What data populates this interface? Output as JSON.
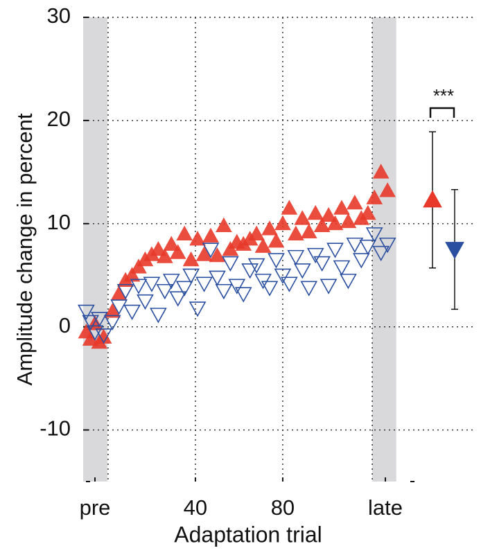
{
  "chart_data": {
    "type": "scatter",
    "y_label": "Amplitude change in percent",
    "x_label": "Adaptation trial",
    "annotation": "***",
    "ylim": [
      -15,
      30
    ],
    "yticks": [
      -10,
      0,
      10,
      20,
      30
    ],
    "xlim": [
      -11.4,
      139.7
    ],
    "xticks": [
      {
        "value": -6,
        "label": "pre"
      },
      40,
      80,
      {
        "value": 127,
        "label": "late"
      }
    ],
    "xgrid": [
      0,
      40,
      80,
      121
    ],
    "shaded_regions": [
      [
        -11.4,
        -0.3
      ],
      [
        121,
        132
      ]
    ],
    "grid": true,
    "series": [
      {
        "color": "#e8392a",
        "marker": "up-filled",
        "x": [
          -10,
          -8,
          -6,
          -4,
          -2,
          2,
          5,
          8,
          11,
          14,
          17,
          20,
          23,
          26,
          29,
          32,
          35,
          38,
          41,
          44,
          47,
          50,
          53,
          56,
          59,
          62,
          65,
          68,
          71,
          74,
          77,
          80,
          83,
          86,
          89,
          92,
          95,
          98,
          101,
          104,
          107,
          110,
          113,
          116,
          119,
          122,
          125,
          128
        ],
        "values": [
          -0.5,
          -1.2,
          0.3,
          -1.5,
          -1.0,
          1.5,
          3.2,
          4.5,
          5.0,
          5.8,
          6.5,
          7.0,
          7.5,
          6.8,
          8.0,
          7.2,
          9.0,
          6.5,
          8.5,
          7.0,
          8.8,
          6.9,
          9.8,
          7.5,
          8.2,
          8.0,
          8.5,
          9.0,
          7.8,
          9.5,
          8.3,
          10.0,
          11.5,
          9.0,
          10.5,
          9.2,
          11.0,
          9.8,
          10.8,
          10.0,
          11.5,
          10.2,
          12.0,
          10.5,
          11.0,
          12.5,
          15.0,
          13.2
        ]
      },
      {
        "color": "#2a4fa0",
        "marker": "down-open",
        "x": [
          -10,
          -8,
          -6,
          -4,
          -2,
          2,
          5,
          8,
          11,
          14,
          17,
          20,
          23,
          26,
          29,
          32,
          35,
          38,
          41,
          44,
          47,
          50,
          53,
          56,
          59,
          62,
          65,
          68,
          71,
          74,
          77,
          80,
          83,
          86,
          89,
          92,
          95,
          98,
          101,
          104,
          107,
          110,
          113,
          116,
          119,
          122,
          125,
          128
        ],
        "values": [
          1.5,
          0.5,
          -0.5,
          0.8,
          -0.8,
          0.5,
          2.0,
          3.5,
          1.5,
          4.0,
          2.5,
          4.2,
          1.2,
          3.5,
          4.5,
          2.8,
          3.8,
          5.0,
          1.8,
          4.2,
          7.5,
          4.8,
          3.5,
          6.2,
          4.0,
          3.2,
          5.5,
          6.0,
          4.5,
          3.8,
          6.5,
          5.0,
          4.2,
          6.8,
          5.5,
          3.8,
          7.0,
          6.2,
          4.0,
          7.5,
          5.8,
          4.5,
          8.0,
          6.5,
          7.8,
          9.0,
          7.2,
          8.0
        ]
      }
    ],
    "summary": [
      {
        "color": "#e8392a",
        "marker": "up-filled",
        "value": 12.3,
        "error": 6.6
      },
      {
        "color": "#2a4fa0",
        "marker": "down-filled",
        "value": 7.5,
        "error": 5.8
      }
    ]
  }
}
